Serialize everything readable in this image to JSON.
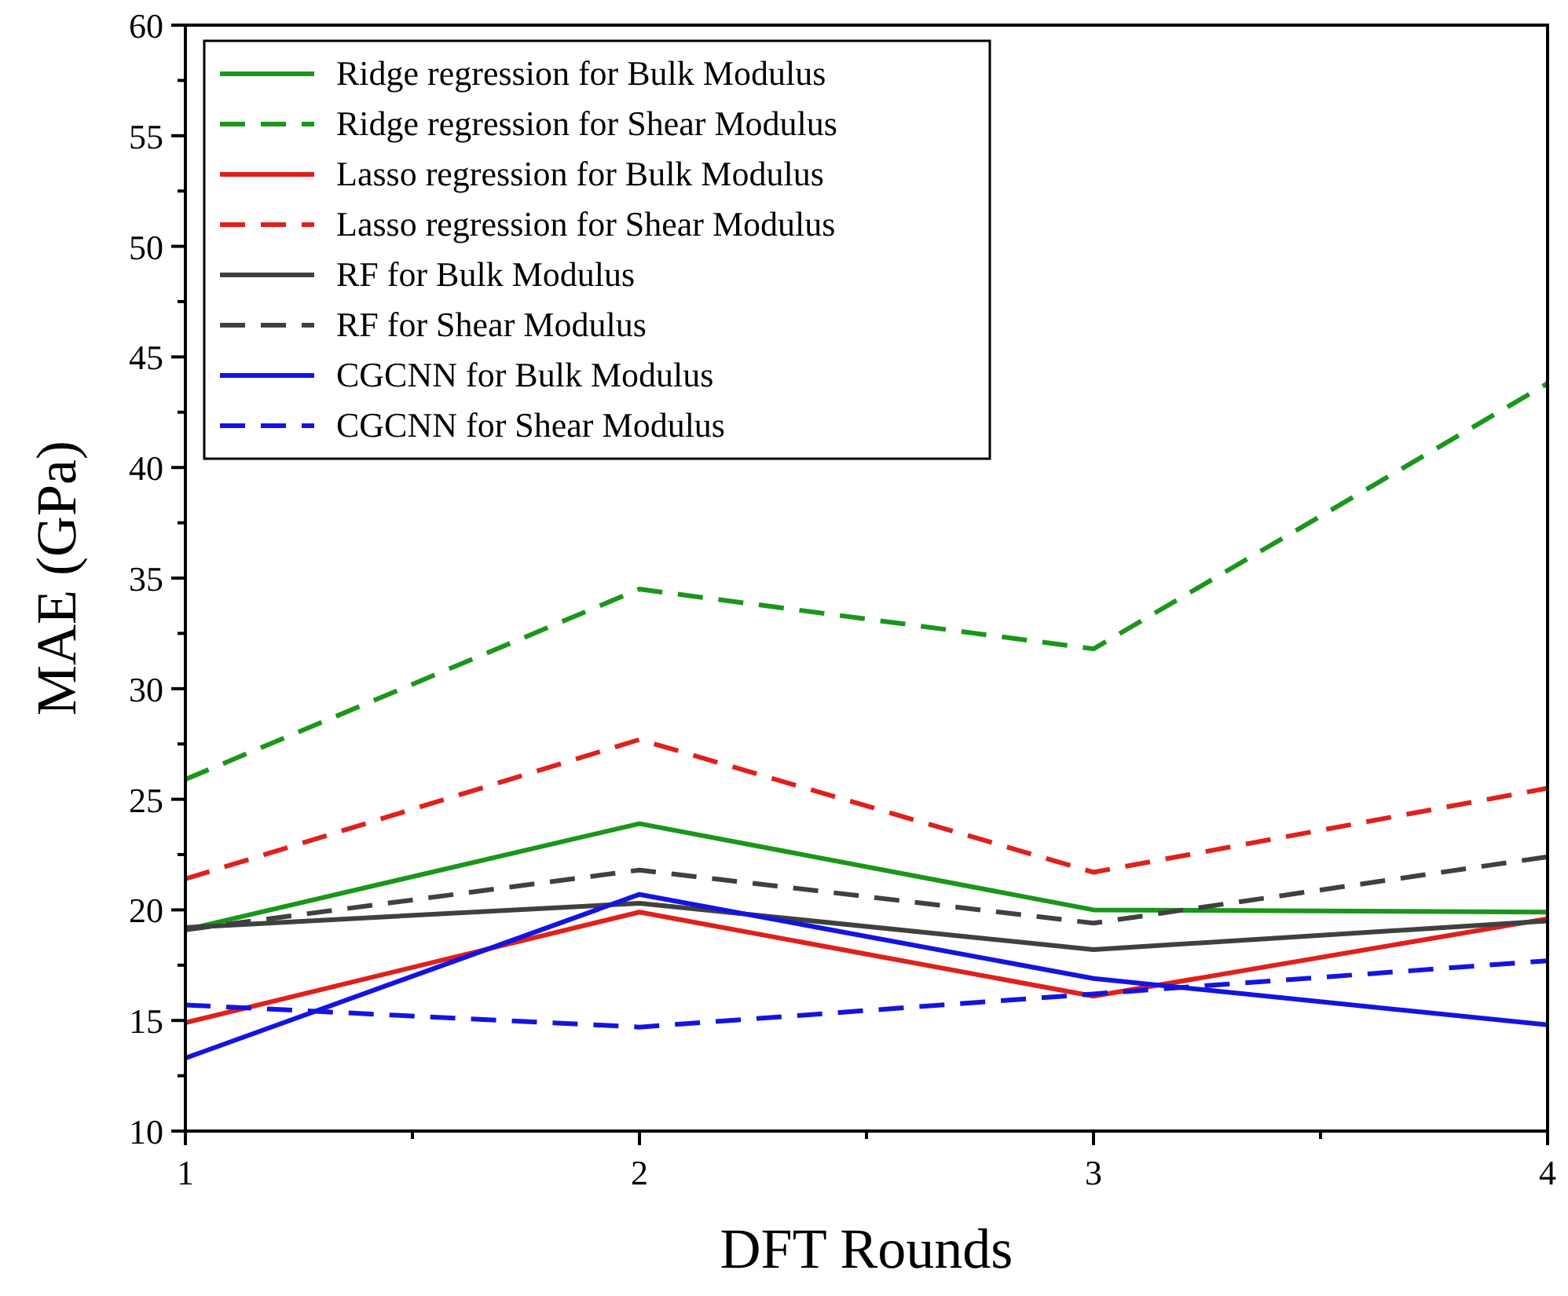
{
  "chart_data": {
    "type": "line",
    "xlabel": "DFT Rounds",
    "ylabel": "MAE (GPa)",
    "x": [
      1,
      2,
      3,
      4
    ],
    "xlim": [
      1,
      4
    ],
    "xticks": [
      1,
      2,
      3,
      4
    ],
    "ylim": [
      10,
      60
    ],
    "yticks": [
      10,
      15,
      20,
      25,
      30,
      35,
      40,
      45,
      50,
      55,
      60
    ],
    "legend": "top left",
    "grid": false,
    "marker": "none",
    "series": [
      {
        "name": "Ridge regression for Bulk Modulus",
        "color": "#1a961a",
        "line_style": "solid",
        "values": [
          19.1,
          23.9,
          20.0,
          19.9
        ]
      },
      {
        "name": "Ridge regression for Shear Modulus",
        "color": "#1a961a",
        "line_style": "dashed",
        "values": [
          25.9,
          34.5,
          31.8,
          43.8
        ]
      },
      {
        "name": "Lasso regression for Bulk Modulus",
        "color": "#e0201c",
        "line_style": "solid",
        "values": [
          14.9,
          19.9,
          16.1,
          19.6
        ]
      },
      {
        "name": "Lasso regression for Shear Modulus",
        "color": "#e0201c",
        "line_style": "dashed",
        "values": [
          21.4,
          27.7,
          21.7,
          25.5
        ]
      },
      {
        "name": "RF for Bulk Modulus",
        "color": "#404040",
        "line_style": "solid",
        "values": [
          19.2,
          20.3,
          18.2,
          19.5
        ]
      },
      {
        "name": "RF for Shear Modulus",
        "color": "#404040",
        "line_style": "dashed",
        "values": [
          19.1,
          21.8,
          19.4,
          22.4
        ]
      },
      {
        "name": "CGCNN for Bulk Modulus",
        "color": "#1414e0",
        "line_style": "solid",
        "values": [
          13.3,
          20.7,
          16.9,
          14.8
        ]
      },
      {
        "name": "CGCNN for Shear Modulus",
        "color": "#1414e0",
        "line_style": "dashed",
        "values": [
          15.7,
          14.7,
          16.2,
          17.7
        ]
      }
    ]
  }
}
